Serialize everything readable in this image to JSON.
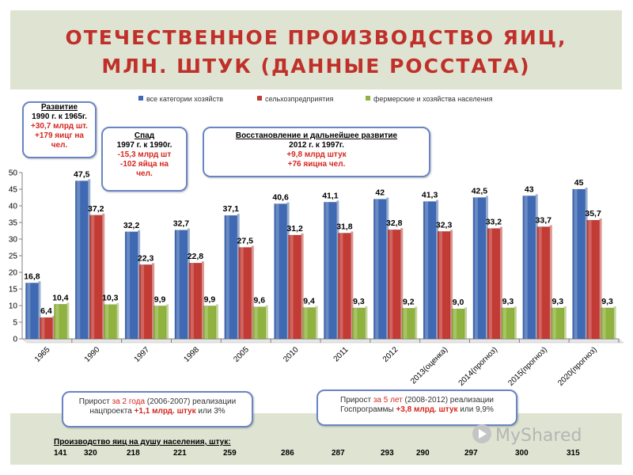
{
  "title": {
    "line1": "ОТЕЧЕСТВЕННОЕ ПРОИЗВОДСТВО ЯИЦ,",
    "line2": "МЛН. ШТУК (ДАННЫЕ РОССТАТА)"
  },
  "colors": {
    "series1": "#3f69b3",
    "series2": "#c23b35",
    "series3": "#8fb33e",
    "accent_red": "#c0302b"
  },
  "chart_data": {
    "type": "bar",
    "categories": [
      "1965",
      "1990",
      "1997",
      "1998",
      "2005",
      "2010",
      "2011",
      "2012",
      "2013(оценка)",
      "2014(прогноз)",
      "2015(прогноз)",
      "2020(прогноз)"
    ],
    "series": [
      {
        "name": "все категории хозяйств",
        "values": [
          16.8,
          47.5,
          32.2,
          32.7,
          37.1,
          40.6,
          41.1,
          42,
          41.3,
          42.5,
          43,
          45
        ],
        "labels": [
          "16,8",
          "47,5",
          "32,2",
          "32,7",
          "37,1",
          "40,6",
          "41,1",
          "42",
          "41,3",
          "42,5",
          "43",
          "45"
        ]
      },
      {
        "name": "сельхозпредприятия",
        "values": [
          6.4,
          37.2,
          22.3,
          22.8,
          27.5,
          31.2,
          31.8,
          32.8,
          32.3,
          33.2,
          33.7,
          35.7
        ],
        "labels": [
          "6,4",
          "37,2",
          "22,3",
          "22,8",
          "27,5",
          "31,2",
          "31,8",
          "32,8",
          "32,3",
          "33,2",
          "33,7",
          "35,7"
        ]
      },
      {
        "name": "фермерские и хозяйства населения",
        "values": [
          10.4,
          10.3,
          9.9,
          9.9,
          9.6,
          9.4,
          9.3,
          9.2,
          9.0,
          9.3,
          9.3,
          9.3
        ],
        "labels": [
          "10,4",
          "10,3",
          "9,9",
          "9,9",
          "9,6",
          "9,4",
          "9,3",
          "9,2",
          "9,0",
          "9,3",
          "9,3",
          "9,3"
        ]
      }
    ],
    "ylim": [
      0,
      50
    ],
    "yticks": [
      "0",
      "5",
      "10",
      "15",
      "20",
      "25",
      "30",
      "35",
      "40",
      "45",
      "50"
    ],
    "legend": "top",
    "grid": false
  },
  "callouts": {
    "razvitie": {
      "head": "Развитие",
      "line1": "1990 г. к 1965г.",
      "line2": "+30,7 млрд шт.",
      "line3": "+179 яицг на",
      "line4": "чел."
    },
    "spad": {
      "head": "Спад",
      "line1": "1997 г. к 1990г.",
      "line2": "-15,3 млрд шт",
      "line3": "-102 яйца на",
      "line4": "чел."
    },
    "vosst": {
      "head": "Восстановление и дальнейшее развитие",
      "line1": "2012 г. к 1997г.",
      "line2": "+9,8 млрд штук",
      "line3": "+76 яицна чел."
    }
  },
  "notes": {
    "left": {
      "t1": "Прирост ",
      "t2": "за 2 года",
      "t3": " (2006-2007) реализации",
      "t4": "нацпроекта ",
      "t5": "+1,1 млрд. штук",
      "t6": " или 3%"
    },
    "right": {
      "t1": "Прирост ",
      "t2": "за 5 лет",
      "t3": " (2008-2012) реализации",
      "t4": "Госпрограммы ",
      "t5": "+3,8 млрд. штук",
      "t6": " или 9,9%"
    }
  },
  "per_capita": {
    "label": "Производство яиц на душу населения, штук:",
    "values": [
      "141",
      "320",
      "218",
      "221",
      "259",
      "286",
      "287",
      "293",
      "290",
      "297",
      "300",
      "315"
    ]
  },
  "watermark": "MyShared"
}
